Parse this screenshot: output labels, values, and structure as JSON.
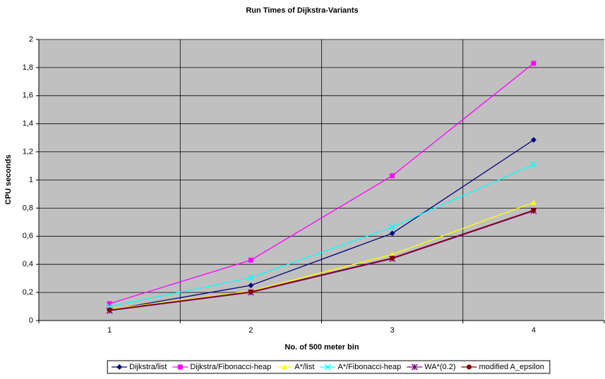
{
  "chart_data": {
    "type": "line",
    "title": "Run Times of Dijkstra-Variants",
    "xlabel": "No. of 500 meter bin",
    "ylabel": "CPU seconds",
    "categories": [
      "1",
      "2",
      "3",
      "4"
    ],
    "ylim": [
      0,
      2
    ],
    "yticks": [
      0,
      {
        "value": 0.2,
        "label": "0,2"
      },
      {
        "value": 0.4,
        "label": "0,4"
      },
      {
        "value": 0.6,
        "label": "0,6"
      },
      {
        "value": 0.8,
        "label": "0,8"
      },
      1,
      {
        "value": 1.2,
        "label": "1,2"
      },
      {
        "value": 1.4,
        "label": "1,4"
      },
      {
        "value": 1.6,
        "label": "1,6"
      },
      {
        "value": 1.8,
        "label": "1,8"
      },
      2
    ],
    "grid": true,
    "legend": "bottom",
    "series": [
      {
        "name": "Dijkstra/list",
        "color": "#000080",
        "marker": "diamond",
        "values": [
          0.075,
          0.25,
          0.62,
          1.285
        ]
      },
      {
        "name": "Dijkstra/Fibonacci-heap",
        "color": "#ff00ff",
        "marker": "square",
        "values": [
          0.12,
          0.43,
          1.03,
          1.83
        ]
      },
      {
        "name": "A*/list",
        "color": "#ffff00",
        "marker": "triangle",
        "values": [
          0.08,
          0.21,
          0.47,
          0.84
        ]
      },
      {
        "name": "A*/Fibonacci-heap",
        "color": "#00ffff",
        "marker": "x",
        "values": [
          0.1,
          0.305,
          0.665,
          1.11
        ]
      },
      {
        "name": "WA*(0.2)",
        "color": "#800080",
        "marker": "star",
        "values": [
          0.07,
          0.2,
          0.44,
          0.78
        ]
      },
      {
        "name": "modified A_epsilon",
        "color": "#800000",
        "marker": "circle",
        "values": [
          0.075,
          0.205,
          0.445,
          0.785
        ]
      }
    ]
  }
}
